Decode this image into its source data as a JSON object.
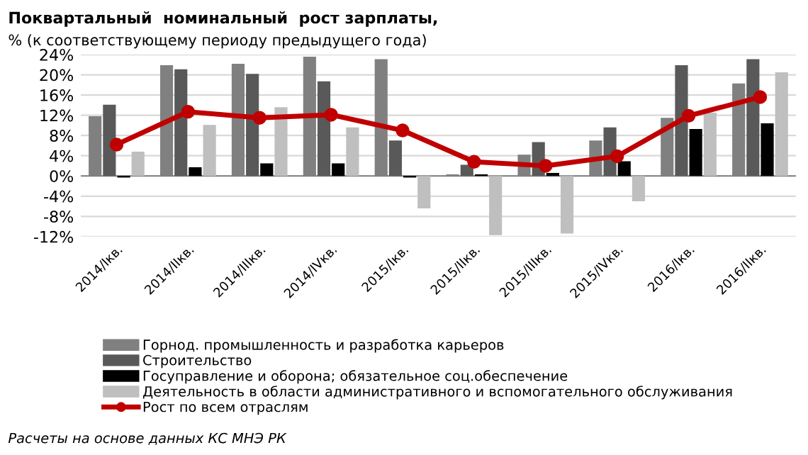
{
  "chart_data": {
    "type": "bar",
    "title": "Поквартальный  номинальный  рост зарплаты,",
    "subtitle": "% (к соответствующему периоду предыдущего года)",
    "categories": [
      "2014/Iкв.",
      "2014/IIкв.",
      "2014/IIIкв.",
      "2014/IVкв.",
      "2015/Iкв.",
      "2015/IIкв.",
      "2015/IIIкв.",
      "2015/IVкв.",
      "2016/Iкв.",
      "2016/IIкв."
    ],
    "series": [
      {
        "name": "Горнод. промышленность и разработка карьеров",
        "color": "#808080",
        "values": [
          11.8,
          21.9,
          22.2,
          23.6,
          23.1,
          0.3,
          4.2,
          7.0,
          11.5,
          18.3
        ]
      },
      {
        "name": "Строительство",
        "color": "#595959",
        "values": [
          14.1,
          21.1,
          20.2,
          18.7,
          7.0,
          2.2,
          6.7,
          9.6,
          21.9,
          23.1
        ]
      },
      {
        "name": "Госуправление и оборона; обязательное соц.обеспечение",
        "color": "#000000",
        "values": [
          -0.3,
          1.7,
          2.5,
          2.5,
          -0.3,
          0.3,
          0.6,
          2.9,
          9.3,
          10.4
        ]
      },
      {
        "name": "Деятельность в области административного и вспомогательного обслуживания",
        "color": "#bfbfbf",
        "values": [
          4.8,
          10.1,
          13.6,
          9.6,
          -6.4,
          -11.7,
          -11.4,
          -5.0,
          12.5,
          20.5
        ]
      },
      {
        "name": "Рост по всем отраслям",
        "type": "line",
        "color": "#c00000",
        "marker": "circle",
        "line_style": "solid",
        "values": [
          6.2,
          12.7,
          11.5,
          12.1,
          9.0,
          2.8,
          2.0,
          3.9,
          11.9,
          15.6
        ]
      }
    ],
    "ylim": [
      -12,
      24
    ],
    "yticks": [
      {
        "value": -12,
        "label": "-12%"
      },
      {
        "value": -8,
        "label": "-8%"
      },
      {
        "value": -4,
        "label": "-4%"
      },
      {
        "value": 0,
        "label": "0%"
      },
      {
        "value": 4,
        "label": "4%"
      },
      {
        "value": 8,
        "label": "8%"
      },
      {
        "value": 12,
        "label": "12%"
      },
      {
        "value": 16,
        "label": "16%"
      },
      {
        "value": 20,
        "label": "20%"
      },
      {
        "value": 24,
        "label": "24%"
      }
    ],
    "grid": "y",
    "legend": "bottom",
    "annotations": [
      "Расчеты на основе данных КС МНЭ РК"
    ]
  }
}
